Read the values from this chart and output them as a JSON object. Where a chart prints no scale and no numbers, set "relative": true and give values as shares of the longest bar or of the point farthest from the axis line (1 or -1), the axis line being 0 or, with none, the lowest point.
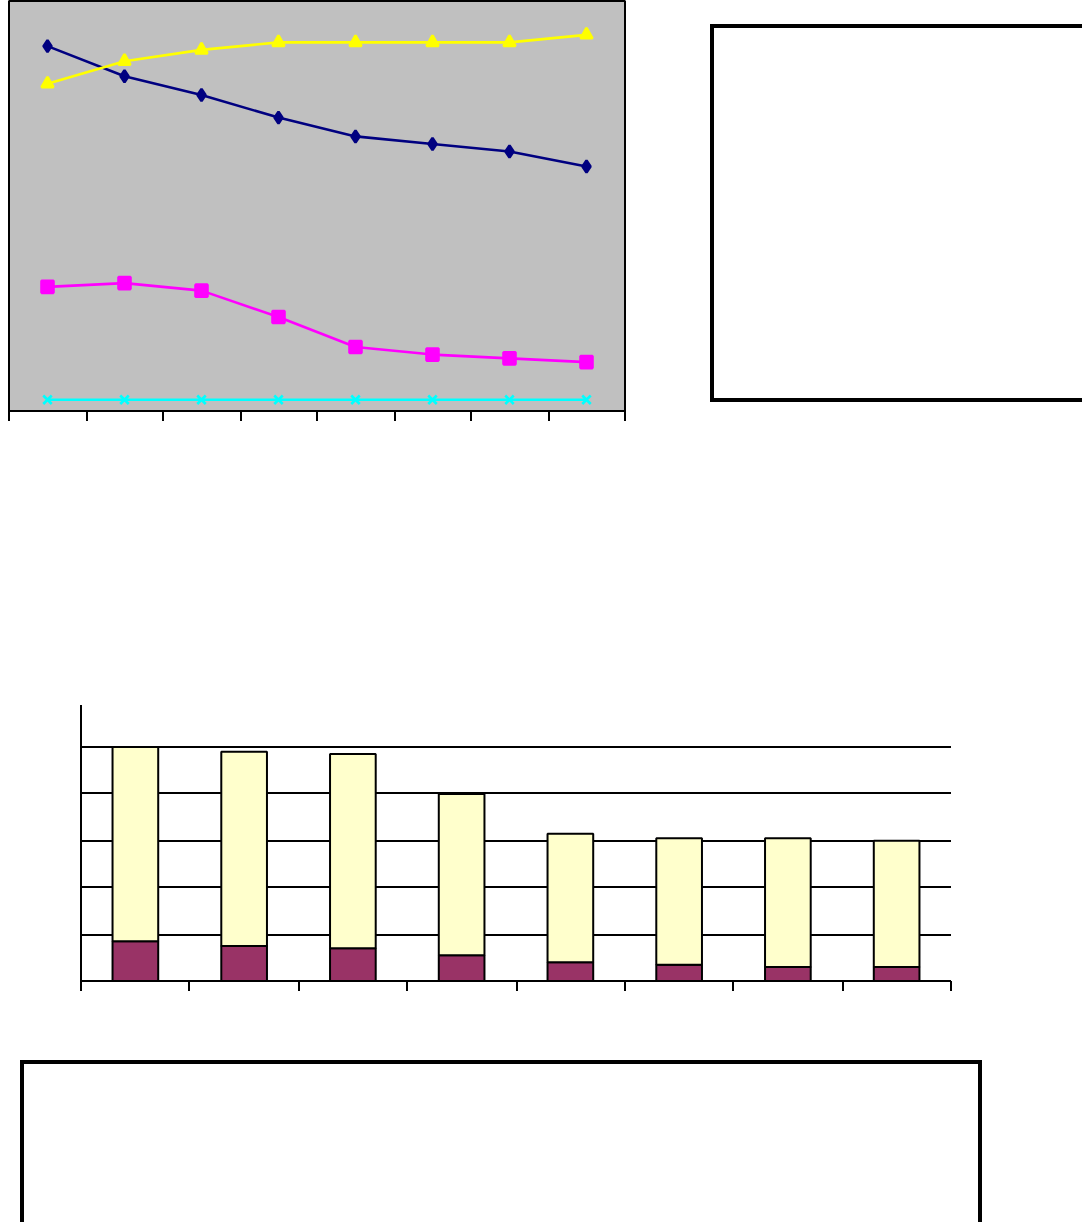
{
  "chart_data": [
    {
      "type": "line",
      "relative": true,
      "categories": [
        null,
        null,
        null,
        null,
        null,
        null,
        null,
        null
      ],
      "tick_labels": false,
      "line_style": "solid",
      "series": [
        {
          "color": "#000080",
          "marker": "diamond",
          "values": [
            0.97,
            0.89,
            0.84,
            0.78,
            0.73,
            0.71,
            0.69,
            0.65
          ]
        },
        {
          "color": "#ff00ff",
          "marker": "square",
          "values": [
            0.33,
            0.34,
            0.32,
            0.25,
            0.17,
            0.15,
            0.14,
            0.13
          ]
        },
        {
          "color": "#ffff00",
          "marker": "triangle",
          "values": [
            0.87,
            0.93,
            0.96,
            0.98,
            0.98,
            0.98,
            0.98,
            1.0
          ]
        },
        {
          "color": "#00ffff",
          "marker": "cross",
          "values": [
            0.03,
            0.03,
            0.03,
            0.03,
            0.03,
            0.03,
            0.03,
            0.03
          ]
        }
      ]
    },
    {
      "type": "bar",
      "relative": true,
      "stacked": true,
      "categories": [
        null,
        null,
        null,
        null,
        null,
        null,
        null,
        null
      ],
      "tick_labels": false,
      "grid": "y",
      "series": [
        {
          "color": "#993366",
          "values": [
            0.17,
            0.15,
            0.14,
            0.11,
            0.08,
            0.07,
            0.06,
            0.06
          ]
        },
        {
          "color": "#ffffcc",
          "values": [
            0.83,
            0.83,
            0.83,
            0.69,
            0.55,
            0.54,
            0.55,
            0.54
          ]
        }
      ]
    }
  ]
}
